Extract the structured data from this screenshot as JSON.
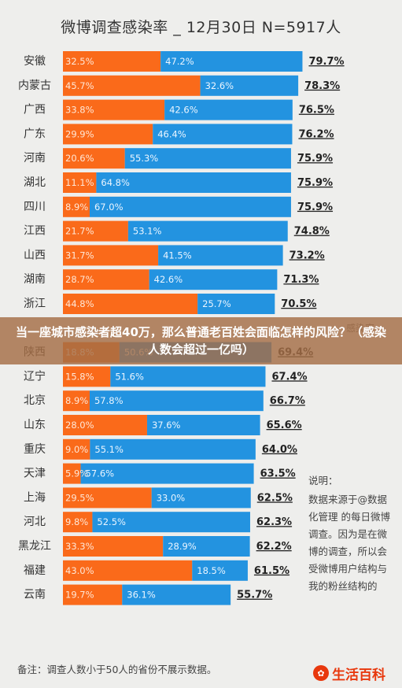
{
  "title": "微博调查感染率 _ 12月30日 N=5917人",
  "banner": "当一座城市感染者超40万，那么普通老百姓会面临怎样的风险？（感染人数会超过一亿吗）",
  "note": {
    "heading": "说明：",
    "body": "数据来源于@数据化管理 的每日微博调查。因为是在微博的调查，所以会受微博用户结构与我的粉丝结构的"
  },
  "footnote": "备注：调查人数小于50人的省份不展示数据。",
  "logo": {
    "mark": "生活",
    "text": "生活百科"
  },
  "colors": {
    "orange": "#fa6a1a",
    "blue": "#2393e0",
    "background": "#eeeeec"
  },
  "chart_data": {
    "type": "bar",
    "orientation": "horizontal",
    "stacked": true,
    "categories": [
      "安徽",
      "内蒙古",
      "广西",
      "广东",
      "河南",
      "湖北",
      "四川",
      "江西",
      "山西",
      "湖南",
      "浙江",
      "",
      "陕西",
      "辽宁",
      "北京",
      "山东",
      "重庆",
      "天津",
      "上海",
      "河北",
      "黑龙江",
      "福建",
      "云南"
    ],
    "series": [
      {
        "values": [
          32.5,
          45.7,
          33.8,
          29.9,
          20.6,
          11.1,
          8.9,
          21.7,
          31.7,
          28.7,
          44.8,
          null,
          18.8,
          15.8,
          8.9,
          28.0,
          9.0,
          5.9,
          29.5,
          9.8,
          33.3,
          43.0,
          19.7
        ],
        "color": "#fa6a1a"
      },
      {
        "values": [
          47.2,
          32.6,
          42.6,
          46.4,
          55.3,
          64.8,
          67.0,
          53.1,
          41.5,
          42.6,
          25.7,
          null,
          50.6,
          51.6,
          57.8,
          37.6,
          55.1,
          57.6,
          33.0,
          52.5,
          28.9,
          18.5,
          36.1
        ],
        "color": "#2393e0"
      }
    ],
    "totals": [
      "79.7%",
      "78.3%",
      "76.5%",
      "76.2%",
      "75.9%",
      "75.9%",
      "75.9%",
      "74.8%",
      "73.2%",
      "71.3%",
      "70.5%",
      "",
      "69.4%",
      "67.4%",
      "66.7%",
      "65.6%",
      "64.0%",
      "63.5%",
      "62.5%",
      "62.3%",
      "62.2%",
      "61.5%",
      "55.7%"
    ],
    "partial_label": "感染率",
    "xlim": [
      0,
      100
    ],
    "grid": false,
    "legend": "none"
  }
}
